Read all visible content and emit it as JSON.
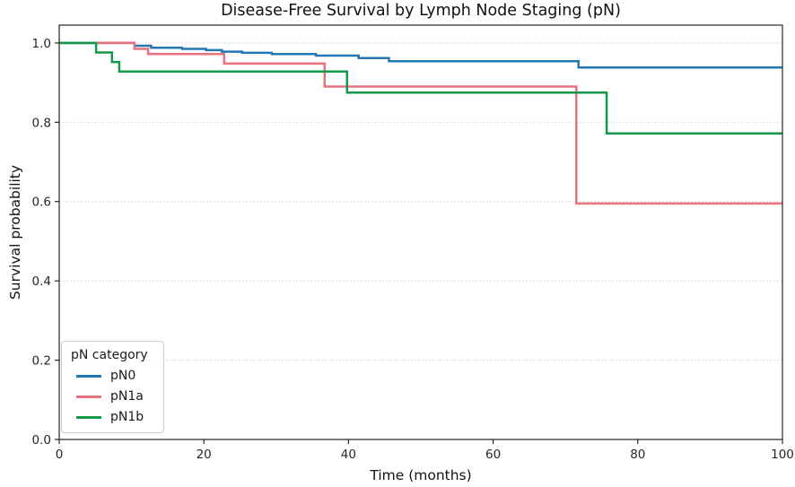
{
  "figure": {
    "title": "Disease-Free Survival by Lymph Node Staging (pN)",
    "xlabel": "Time (months)",
    "ylabel": "Survival probability"
  },
  "legend": {
    "title": "pN category",
    "items": [
      {
        "label": "pN0",
        "color": "#2277b4"
      },
      {
        "label": "pN1a",
        "color": "#e8717f"
      },
      {
        "label": "pN1b",
        "color": "#12994a"
      }
    ]
  },
  "chart_data": {
    "type": "line",
    "subtype": "kaplan-meier-step",
    "title": "Disease-Free Survival by Lymph Node Staging (pN)",
    "xlabel": "Time (months)",
    "ylabel": "Survival probability",
    "xlim": [
      0,
      100
    ],
    "ylim": [
      0,
      1.045
    ],
    "xticks": [
      0,
      20,
      40,
      60,
      80,
      100
    ],
    "xtick_labels": [
      "0",
      "20",
      "40",
      "60",
      "80",
      "100"
    ],
    "yticks": [
      0.0,
      0.2,
      0.4,
      0.6,
      0.8,
      1.0
    ],
    "ytick_labels": [
      "0.0",
      "0.2",
      "0.4",
      "0.6",
      "0.8",
      "1.0"
    ],
    "grid": "horizontal-dotted",
    "grid_color": "#c9c9c9",
    "axis_color": "#262626",
    "legend_position": "lower-left",
    "line_width": 2.5,
    "series": [
      {
        "name": "pN0",
        "color": "#2277b4",
        "steps": [
          [
            0,
            1.0
          ],
          [
            10.4,
            0.993
          ],
          [
            12.7,
            0.988
          ],
          [
            17,
            0.985
          ],
          [
            20.3,
            0.982
          ],
          [
            22.5,
            0.978
          ],
          [
            25.3,
            0.975
          ],
          [
            29.4,
            0.972
          ],
          [
            35.5,
            0.968
          ],
          [
            41.4,
            0.962
          ],
          [
            45.6,
            0.954
          ],
          [
            71.8,
            0.938
          ]
        ],
        "end_time": 100,
        "final_value": 0.938
      },
      {
        "name": "pN1a",
        "color": "#e8717f",
        "steps": [
          [
            0,
            1.0
          ],
          [
            10.4,
            0.985
          ],
          [
            12.3,
            0.972
          ],
          [
            22.8,
            0.948
          ],
          [
            36.7,
            0.89
          ],
          [
            71.5,
            0.595
          ]
        ],
        "end_time": 100,
        "final_value": 0.595
      },
      {
        "name": "pN1b",
        "color": "#12994a",
        "steps": [
          [
            0,
            1.0
          ],
          [
            5.1,
            0.976
          ],
          [
            7.3,
            0.952
          ],
          [
            8.3,
            0.928
          ],
          [
            39.8,
            0.875
          ],
          [
            75.7,
            0.772
          ]
        ],
        "end_time": 100,
        "final_value": 0.772
      }
    ]
  }
}
